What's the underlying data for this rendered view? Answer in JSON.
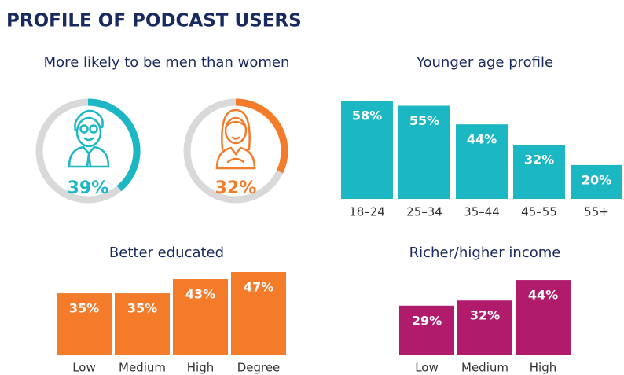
{
  "title": "PROFILE OF PODCAST USERS",
  "chart_data": [
    {
      "type": "donut",
      "title": "More likely to be men than women",
      "values": [
        39,
        32
      ],
      "value_labels": [
        "39%",
        "32%"
      ],
      "colors": [
        "#1bb8c4",
        "#f47b2a"
      ],
      "track_color": "#d9d9d9"
    },
    {
      "type": "bar",
      "title": "Younger age profile",
      "categories": [
        "18–24",
        "25–34",
        "35–44",
        "45–55",
        "55+"
      ],
      "values": [
        58,
        55,
        44,
        32,
        20
      ],
      "value_labels": [
        "58%",
        "55%",
        "44%",
        "32%",
        "20%"
      ],
      "color": "#1bb8c4"
    },
    {
      "type": "bar",
      "title": "Better educated",
      "categories": [
        "Low",
        "Medium",
        "High",
        "Degree"
      ],
      "values": [
        35,
        35,
        43,
        47
      ],
      "value_labels": [
        "35%",
        "35%",
        "43%",
        "47%"
      ],
      "color": "#f47b2a"
    },
    {
      "type": "bar",
      "title": "Richer/higher income",
      "categories": [
        "Low",
        "Medium",
        "High"
      ],
      "values": [
        29,
        32,
        44
      ],
      "value_labels": [
        "29%",
        "32%",
        "44%"
      ],
      "color": "#b01c6b"
    }
  ]
}
